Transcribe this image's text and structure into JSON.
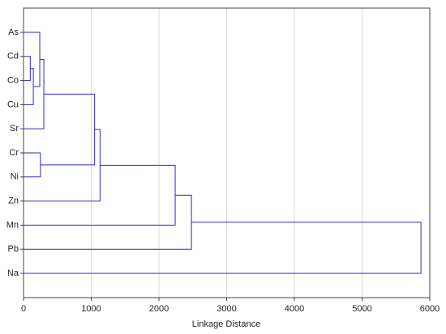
{
  "chart_data": {
    "type": "dendrogram",
    "x_label": "Linkage Distance",
    "leaves": [
      "As",
      "Cd",
      "Co",
      "Cu",
      "Sr",
      "Cr",
      "Ni",
      "Zn",
      "Mn",
      "Pb",
      "Na"
    ],
    "merges": [
      {
        "a": 1,
        "b": 2,
        "distance": 100
      },
      {
        "a": 11,
        "b": 3,
        "distance": 145
      },
      {
        "a": 0,
        "b": 12,
        "distance": 240
      },
      {
        "a": 5,
        "b": 6,
        "distance": 250
      },
      {
        "a": 13,
        "b": 4,
        "distance": 300
      },
      {
        "a": 15,
        "b": 14,
        "distance": 1050
      },
      {
        "a": 16,
        "b": 7,
        "distance": 1130
      },
      {
        "a": 17,
        "b": 8,
        "distance": 2240
      },
      {
        "a": 18,
        "b": 9,
        "distance": 2480
      },
      {
        "a": 19,
        "b": 10,
        "distance": 5870
      }
    ],
    "color": "#2a2ac8",
    "xlim": [
      0,
      6000
    ],
    "xticks": [
      0,
      1000,
      2000,
      3000,
      4000,
      5000,
      6000
    ],
    "grid": true
  }
}
